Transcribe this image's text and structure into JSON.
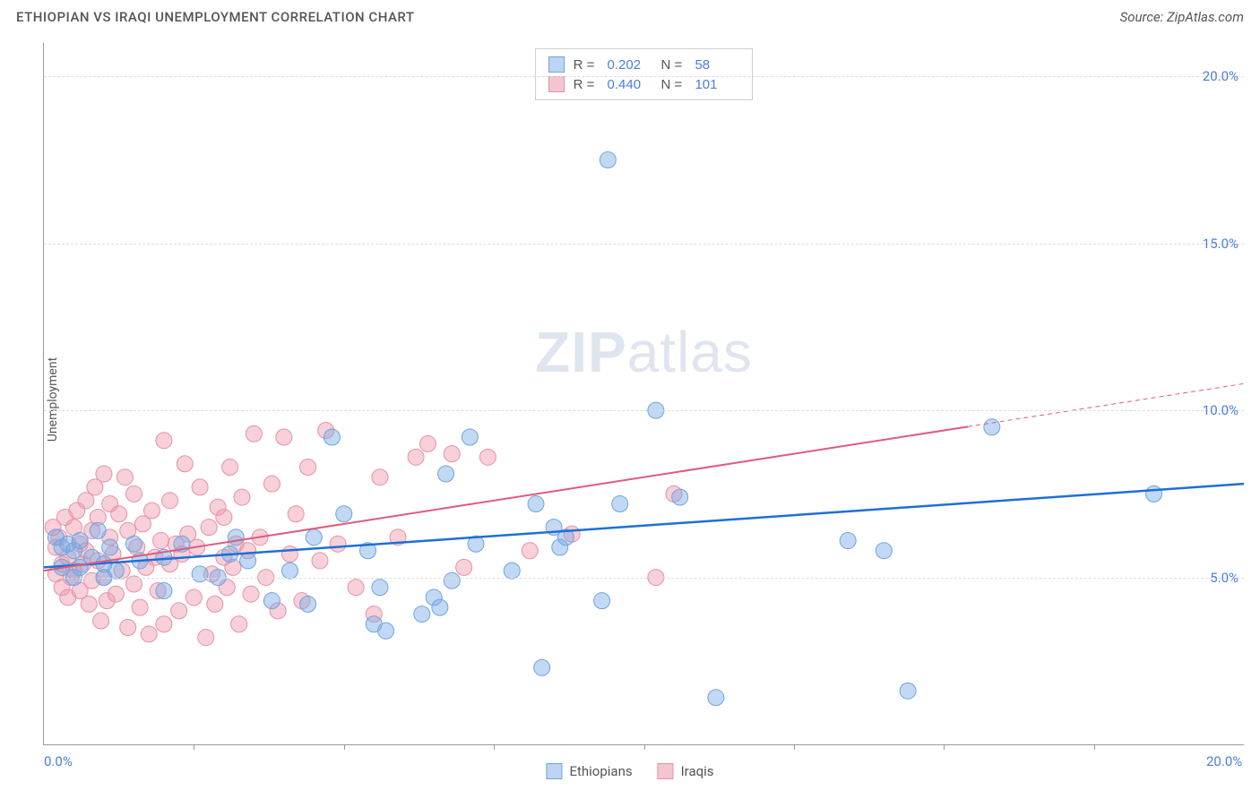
{
  "header": {
    "title": "ETHIOPIAN VS IRAQI UNEMPLOYMENT CORRELATION CHART",
    "source": "Source: ZipAtlas.com"
  },
  "y_axis_label": "Unemployment",
  "watermark": {
    "part1": "ZIP",
    "part2": "atlas"
  },
  "chart": {
    "type": "scatter",
    "background_color": "#ffffff",
    "grid_color": "#dddddd",
    "axis_color": "#999999",
    "tick_color": "#4a7fd8",
    "xlim": [
      0,
      20
    ],
    "ylim": [
      0,
      21
    ],
    "x_ticks_labeled": [
      {
        "v": 0,
        "label": "0.0%"
      },
      {
        "v": 20,
        "label": "20.0%"
      }
    ],
    "x_ticks_minor": [
      2.5,
      5,
      7.5,
      10,
      12.5,
      15,
      17.5
    ],
    "y_ticks": [
      {
        "v": 5,
        "label": "5.0%"
      },
      {
        "v": 10,
        "label": "10.0%"
      },
      {
        "v": 15,
        "label": "15.0%"
      },
      {
        "v": 20,
        "label": "20.0%"
      }
    ],
    "series": [
      {
        "id": "ethiopians",
        "label": "Ethiopians",
        "fill": "rgba(120,170,230,0.45)",
        "stroke": "#6fa3dd",
        "swatch_fill": "#bcd5f0",
        "swatch_border": "#6fa3dd",
        "marker_radius": 9,
        "trend": {
          "color": "#1f6fd6",
          "width": 2.5,
          "x1": 0,
          "y1": 5.3,
          "x2": 20,
          "y2": 7.8,
          "solid_end_x": 20
        },
        "R": "0.202",
        "N": "58",
        "points": [
          [
            0.2,
            6.2
          ],
          [
            0.3,
            5.9
          ],
          [
            0.3,
            5.3
          ],
          [
            0.4,
            6.0
          ],
          [
            0.5,
            5.0
          ],
          [
            0.5,
            5.8
          ],
          [
            0.6,
            6.1
          ],
          [
            0.6,
            5.3
          ],
          [
            0.8,
            5.6
          ],
          [
            0.9,
            6.4
          ],
          [
            1.0,
            5.4
          ],
          [
            1.0,
            5.0
          ],
          [
            1.1,
            5.9
          ],
          [
            1.2,
            5.2
          ],
          [
            1.5,
            6.0
          ],
          [
            1.6,
            5.5
          ],
          [
            2.0,
            5.6
          ],
          [
            2.0,
            4.6
          ],
          [
            2.3,
            6.0
          ],
          [
            2.6,
            5.1
          ],
          [
            2.9,
            5.0
          ],
          [
            3.1,
            5.7
          ],
          [
            3.2,
            6.2
          ],
          [
            3.4,
            5.5
          ],
          [
            3.8,
            4.3
          ],
          [
            4.1,
            5.2
          ],
          [
            4.4,
            4.2
          ],
          [
            4.5,
            6.2
          ],
          [
            4.8,
            9.2
          ],
          [
            5.0,
            6.9
          ],
          [
            5.4,
            5.8
          ],
          [
            5.5,
            3.6
          ],
          [
            5.6,
            4.7
          ],
          [
            5.7,
            3.4
          ],
          [
            6.3,
            3.9
          ],
          [
            6.5,
            4.4
          ],
          [
            6.6,
            4.1
          ],
          [
            6.7,
            8.1
          ],
          [
            6.8,
            4.9
          ],
          [
            7.2,
            6.0
          ],
          [
            7.1,
            9.2
          ],
          [
            7.8,
            5.2
          ],
          [
            8.2,
            7.2
          ],
          [
            8.3,
            2.3
          ],
          [
            8.5,
            6.5
          ],
          [
            8.6,
            5.9
          ],
          [
            8.7,
            6.2
          ],
          [
            9.3,
            4.3
          ],
          [
            9.4,
            17.5
          ],
          [
            9.6,
            7.2
          ],
          [
            10.2,
            10.0
          ],
          [
            10.6,
            7.4
          ],
          [
            11.2,
            1.4
          ],
          [
            13.4,
            6.1
          ],
          [
            14.4,
            1.6
          ],
          [
            15.8,
            9.5
          ],
          [
            14.0,
            5.8
          ],
          [
            18.5,
            7.5
          ]
        ]
      },
      {
        "id": "iraqis",
        "label": "Iraqis",
        "fill": "rgba(240,150,170,0.45)",
        "stroke": "#e591a5",
        "swatch_fill": "#f4c5d0",
        "swatch_border": "#e591a5",
        "marker_radius": 9,
        "trend": {
          "color": "#e05a7e",
          "width": 2,
          "x1": 0,
          "y1": 5.2,
          "x2": 20,
          "y2": 10.8,
          "solid_end_x": 15.4
        },
        "R": "0.440",
        "N": "101",
        "points": [
          [
            0.15,
            6.5
          ],
          [
            0.2,
            5.9
          ],
          [
            0.2,
            5.1
          ],
          [
            0.25,
            6.2
          ],
          [
            0.3,
            5.4
          ],
          [
            0.3,
            4.7
          ],
          [
            0.35,
            6.8
          ],
          [
            0.4,
            5.6
          ],
          [
            0.4,
            4.4
          ],
          [
            0.45,
            5.0
          ],
          [
            0.5,
            6.5
          ],
          [
            0.5,
            5.2
          ],
          [
            0.55,
            7.0
          ],
          [
            0.6,
            4.6
          ],
          [
            0.6,
            6.0
          ],
          [
            0.65,
            5.4
          ],
          [
            0.7,
            7.3
          ],
          [
            0.7,
            5.8
          ],
          [
            0.75,
            4.2
          ],
          [
            0.8,
            6.4
          ],
          [
            0.8,
            4.9
          ],
          [
            0.85,
            7.7
          ],
          [
            0.9,
            5.5
          ],
          [
            0.9,
            6.8
          ],
          [
            0.95,
            3.7
          ],
          [
            1.0,
            8.1
          ],
          [
            1.0,
            5.0
          ],
          [
            1.05,
            4.3
          ],
          [
            1.1,
            6.2
          ],
          [
            1.1,
            7.2
          ],
          [
            1.15,
            5.7
          ],
          [
            1.2,
            4.5
          ],
          [
            1.25,
            6.9
          ],
          [
            1.3,
            5.2
          ],
          [
            1.35,
            8.0
          ],
          [
            1.4,
            3.5
          ],
          [
            1.4,
            6.4
          ],
          [
            1.5,
            4.8
          ],
          [
            1.5,
            7.5
          ],
          [
            1.55,
            5.9
          ],
          [
            1.6,
            4.1
          ],
          [
            1.65,
            6.6
          ],
          [
            1.7,
            5.3
          ],
          [
            1.75,
            3.3
          ],
          [
            1.8,
            7.0
          ],
          [
            1.85,
            5.6
          ],
          [
            1.9,
            4.6
          ],
          [
            1.95,
            6.1
          ],
          [
            2.0,
            9.1
          ],
          [
            2.0,
            3.6
          ],
          [
            2.1,
            5.4
          ],
          [
            2.1,
            7.3
          ],
          [
            2.2,
            6.0
          ],
          [
            2.25,
            4.0
          ],
          [
            2.3,
            5.7
          ],
          [
            2.35,
            8.4
          ],
          [
            2.4,
            6.3
          ],
          [
            2.5,
            4.4
          ],
          [
            2.55,
            5.9
          ],
          [
            2.6,
            7.7
          ],
          [
            2.7,
            3.2
          ],
          [
            2.75,
            6.5
          ],
          [
            2.8,
            5.1
          ],
          [
            2.85,
            4.2
          ],
          [
            2.9,
            7.1
          ],
          [
            3.0,
            5.6
          ],
          [
            3.0,
            6.8
          ],
          [
            3.05,
            4.7
          ],
          [
            3.1,
            8.3
          ],
          [
            3.15,
            5.3
          ],
          [
            3.2,
            6.0
          ],
          [
            3.25,
            3.6
          ],
          [
            3.3,
            7.4
          ],
          [
            3.4,
            5.8
          ],
          [
            3.45,
            4.5
          ],
          [
            3.5,
            9.3
          ],
          [
            3.6,
            6.2
          ],
          [
            3.7,
            5.0
          ],
          [
            3.8,
            7.8
          ],
          [
            3.9,
            4.0
          ],
          [
            4.0,
            9.2
          ],
          [
            4.1,
            5.7
          ],
          [
            4.2,
            6.9
          ],
          [
            4.3,
            4.3
          ],
          [
            4.4,
            8.3
          ],
          [
            4.6,
            5.5
          ],
          [
            4.7,
            9.4
          ],
          [
            4.9,
            6.0
          ],
          [
            5.2,
            4.7
          ],
          [
            5.5,
            3.9
          ],
          [
            5.6,
            8.0
          ],
          [
            5.9,
            6.2
          ],
          [
            6.2,
            8.6
          ],
          [
            6.4,
            9.0
          ],
          [
            6.8,
            8.7
          ],
          [
            7.0,
            5.3
          ],
          [
            7.4,
            8.6
          ],
          [
            8.1,
            5.8
          ],
          [
            8.8,
            6.3
          ],
          [
            10.5,
            7.5
          ],
          [
            10.2,
            5.0
          ]
        ]
      }
    ]
  },
  "legend_bottom": [
    {
      "label": "Ethiopians",
      "series": 0
    },
    {
      "label": "Iraqis",
      "series": 1
    }
  ]
}
